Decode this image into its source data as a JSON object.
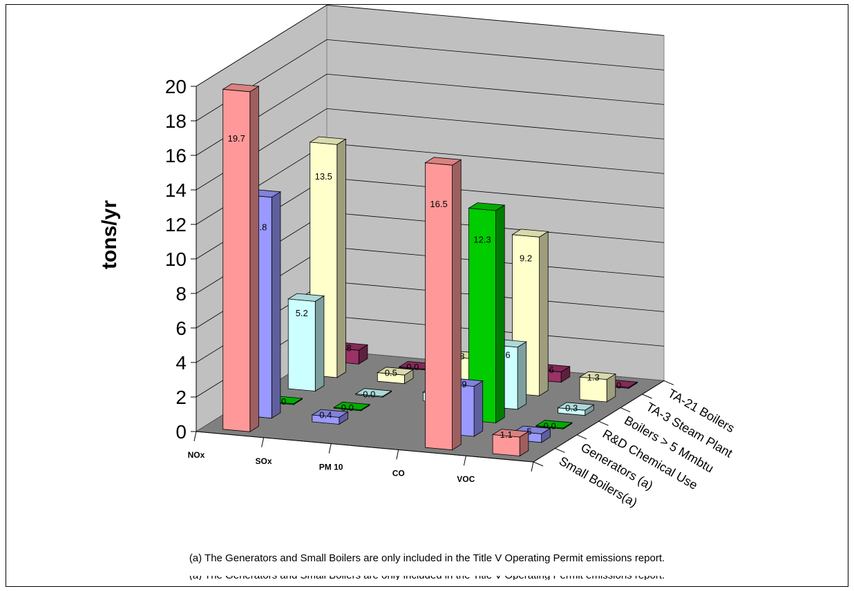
{
  "chart_data": {
    "type": "bar",
    "title": "",
    "ylabel": "tons/yr",
    "ylim": [
      0,
      20
    ],
    "yticks": [
      "0",
      "2",
      "4",
      "6",
      "8",
      "10",
      "12",
      "14",
      "16",
      "18",
      "20"
    ],
    "categories": [
      "NOx",
      "SOx",
      "PM 10",
      "CO",
      "VOC"
    ],
    "series": [
      {
        "name": "Small Boilers(a)",
        "color": "#ff9999",
        "values": [
          19.7,
          null,
          null,
          16.5,
          1.1
        ],
        "labels": [
          "19.7",
          "",
          "",
          "16.5",
          "1.1"
        ]
      },
      {
        "name": "Generators (a)",
        "color": "#9999ff",
        "values": [
          12.8,
          0.4,
          null,
          2.9,
          0.5
        ],
        "labels": [
          "12.8",
          "0.4",
          "",
          "2.9",
          ".5"
        ]
      },
      {
        "name": "R&D Chemical Use",
        "color": "#00cc00",
        "values": [
          0.0,
          0.0,
          null,
          12.3,
          0.0
        ],
        "labels": [
          "0.0",
          "0.0",
          "",
          "12.3",
          "0.0"
        ]
      },
      {
        "name": "Boilers > 5 Mmbtu",
        "color": "#ccffff",
        "values": [
          5.2,
          0.0,
          0.5,
          3.6,
          0.3
        ],
        "labels": [
          "5.2",
          "0.0",
          "0.5",
          "3.6",
          "0.3"
        ]
      },
      {
        "name": "TA-3 Steam Plant",
        "color": "#ffffcc",
        "values": [
          13.5,
          0.5,
          1.8,
          9.2,
          1.3
        ],
        "labels": [
          "13.5",
          "0.5",
          "1.8",
          "9.2",
          "1.3"
        ]
      },
      {
        "name": "TA-21 Boilers",
        "color": "#993366",
        "values": [
          0.8,
          0.0,
          0.1,
          0.6,
          0.0
        ],
        "labels": [
          "0.8",
          "0.0",
          "0.1",
          "0.6",
          "0.0"
        ]
      }
    ],
    "grid": true,
    "three_d": true
  },
  "footnote": "(a) The Generators and Small Boilers are only included in the Title V Operating Permit emissions report."
}
